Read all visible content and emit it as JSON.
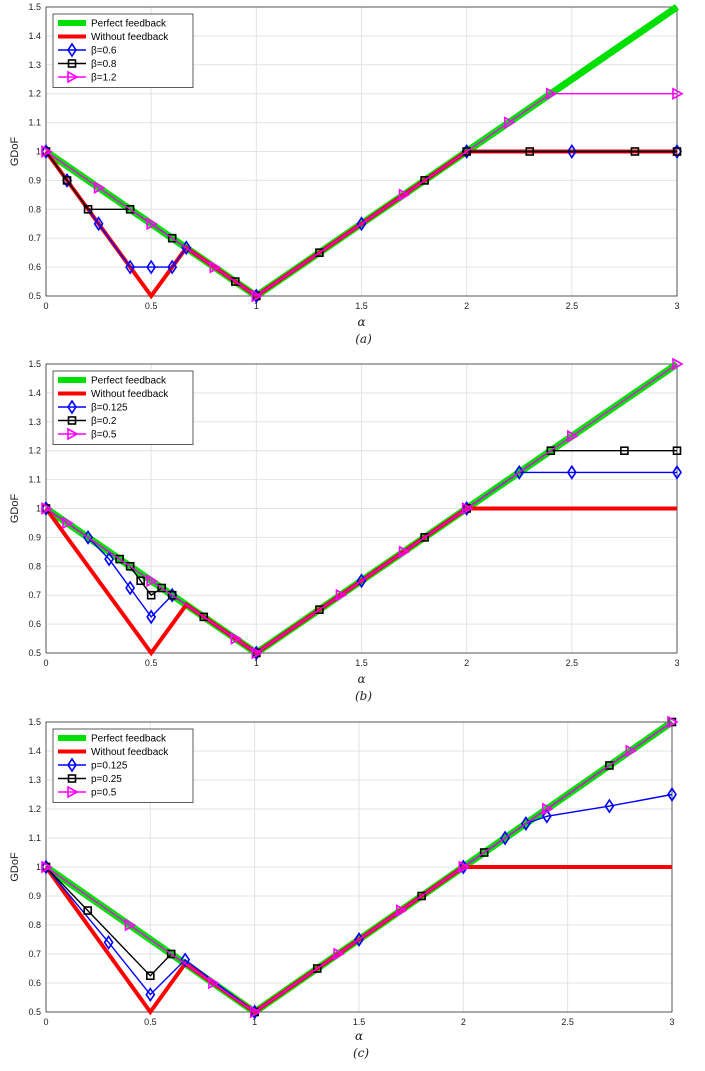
{
  "chart_data": [
    {
      "type": "line",
      "caption": "(a)",
      "xlabel": "α",
      "ylabel": "GDoF",
      "xlim": [
        0,
        3
      ],
      "ylim": [
        0.5,
        1.5
      ],
      "xticks": [
        "0",
        "0.5",
        "1",
        "1.5",
        "2",
        "2.5",
        "3"
      ],
      "yticks": [
        "0.5",
        "0.6",
        "0.7",
        "0.8",
        "0.9",
        "1",
        "1.1",
        "1.2",
        "1.3",
        "1.4",
        "1.5"
      ],
      "grid": true,
      "legend_position": "top-left",
      "series": [
        {
          "name": "Perfect feedback",
          "color": "#00e000",
          "marker": "none",
          "width": "thick",
          "x": [
            0,
            1,
            3
          ],
          "y": [
            1,
            0.5,
            1.5
          ]
        },
        {
          "name": "Without feedback",
          "color": "#ff0000",
          "marker": "none",
          "width": "medium",
          "x": [
            0,
            0.5,
            0.667,
            1,
            2,
            3
          ],
          "y": [
            1,
            0.5,
            0.667,
            0.5,
            1,
            1
          ]
        },
        {
          "name": "β=0.6",
          "color": "#0000ff",
          "marker": "diamond",
          "x": [
            0,
            0.1,
            0.25,
            0.4,
            0.5,
            0.6,
            0.667,
            1,
            1.5,
            2,
            2.5,
            3
          ],
          "y": [
            1,
            0.9,
            0.75,
            0.6,
            0.6,
            0.6,
            0.667,
            0.5,
            0.75,
            1,
            1,
            1
          ]
        },
        {
          "name": "β=0.8",
          "color": "#000000",
          "marker": "square",
          "x": [
            0,
            0.1,
            0.2,
            0.4,
            0.6,
            0.9,
            1,
            1.3,
            1.8,
            2,
            2.3,
            2.8,
            3
          ],
          "y": [
            1,
            0.9,
            0.8,
            0.8,
            0.7,
            0.55,
            0.5,
            0.65,
            0.9,
            1,
            1,
            1,
            1
          ]
        },
        {
          "name": "β=1.2",
          "color": "#ff00ff",
          "marker": "triangle-right",
          "x": [
            0,
            0.25,
            0.5,
            0.8,
            1,
            1.7,
            2.2,
            2.4,
            3
          ],
          "y": [
            1,
            0.875,
            0.75,
            0.6,
            0.5,
            0.85,
            1.1,
            1.2,
            1.2
          ]
        }
      ]
    },
    {
      "type": "line",
      "caption": "(b)",
      "xlabel": "α",
      "ylabel": "GDoF",
      "xlim": [
        0,
        3
      ],
      "ylim": [
        0.5,
        1.5
      ],
      "xticks": [
        "0",
        "0.5",
        "1",
        "1.5",
        "2",
        "2.5",
        "3"
      ],
      "yticks": [
        "0.5",
        "0.6",
        "0.7",
        "0.8",
        "0.9",
        "1",
        "1.1",
        "1.2",
        "1.3",
        "1.4",
        "1.5"
      ],
      "grid": true,
      "legend_position": "top-left",
      "series": [
        {
          "name": "Perfect feedback",
          "color": "#00e000",
          "marker": "none",
          "width": "thick",
          "x": [
            0,
            1,
            3
          ],
          "y": [
            1,
            0.5,
            1.5
          ]
        },
        {
          "name": "Without feedback",
          "color": "#ff0000",
          "marker": "none",
          "width": "medium",
          "x": [
            0,
            0.5,
            0.667,
            1,
            2,
            3
          ],
          "y": [
            1,
            0.5,
            0.667,
            0.5,
            1,
            1
          ]
        },
        {
          "name": "β=0.125",
          "color": "#0000ff",
          "marker": "diamond",
          "x": [
            0,
            0.2,
            0.3,
            0.4,
            0.5,
            0.6,
            1,
            1.5,
            2,
            2.25,
            2.5,
            3
          ],
          "y": [
            1,
            0.9,
            0.825,
            0.725,
            0.625,
            0.7,
            0.5,
            0.75,
            1,
            1.125,
            1.125,
            1.125
          ]
        },
        {
          "name": "β=0.2",
          "color": "#000000",
          "marker": "square",
          "x": [
            0,
            0.35,
            0.4,
            0.45,
            0.5,
            0.55,
            0.6,
            0.75,
            1,
            1.3,
            1.8,
            2,
            2.4,
            2.75,
            3
          ],
          "y": [
            1,
            0.825,
            0.8,
            0.75,
            0.7,
            0.725,
            0.7,
            0.625,
            0.5,
            0.65,
            0.9,
            1,
            1.2,
            1.2,
            1.2
          ]
        },
        {
          "name": "β=0.5",
          "color": "#ff00ff",
          "marker": "triangle-right",
          "x": [
            0,
            0.1,
            0.5,
            0.9,
            1,
            1.4,
            1.7,
            2,
            2.5,
            3
          ],
          "y": [
            1,
            0.95,
            0.75,
            0.55,
            0.5,
            0.7,
            0.85,
            1,
            1.25,
            1.5
          ]
        }
      ]
    },
    {
      "type": "line",
      "caption": "(c)",
      "xlabel": "α",
      "ylabel": "GDoF",
      "xlim": [
        0,
        3
      ],
      "ylim": [
        0.5,
        1.5
      ],
      "xticks": [
        "0",
        "0.5",
        "1",
        "1.5",
        "2",
        "2.5",
        "3"
      ],
      "yticks": [
        "0.5",
        "0.6",
        "0.7",
        "0.8",
        "0.9",
        "1",
        "1.1",
        "1.2",
        "1.3",
        "1.4",
        "1.5"
      ],
      "grid": true,
      "legend_position": "top-left",
      "series": [
        {
          "name": "Perfect feedback",
          "color": "#00e000",
          "marker": "none",
          "width": "thick",
          "x": [
            0,
            1,
            3
          ],
          "y": [
            1,
            0.5,
            1.5
          ]
        },
        {
          "name": "Without feedback",
          "color": "#ff0000",
          "marker": "none",
          "width": "medium",
          "x": [
            0,
            0.5,
            0.667,
            1,
            2,
            3
          ],
          "y": [
            1,
            0.5,
            0.667,
            0.5,
            1,
            1
          ]
        },
        {
          "name": "p=0.125",
          "color": "#0000ff",
          "marker": "diamond",
          "x": [
            0,
            0.3,
            0.5,
            0.667,
            1,
            1.5,
            2,
            2.2,
            2.3,
            2.4,
            2.7,
            3
          ],
          "y": [
            1,
            0.74,
            0.56,
            0.68,
            0.5,
            0.75,
            1,
            1.1,
            1.15,
            1.175,
            1.21,
            1.25
          ]
        },
        {
          "name": "p=0.25",
          "color": "#000000",
          "marker": "square",
          "x": [
            0,
            0.2,
            0.5,
            0.6,
            1,
            1.3,
            1.8,
            2.1,
            2.7,
            3
          ],
          "y": [
            1,
            0.85,
            0.625,
            0.7,
            0.5,
            0.65,
            0.9,
            1.05,
            1.35,
            1.5
          ]
        },
        {
          "name": "p=0.5",
          "color": "#ff00ff",
          "marker": "triangle-right",
          "x": [
            0,
            0.4,
            0.8,
            1,
            1.4,
            1.7,
            2,
            2.4,
            2.8,
            3
          ],
          "y": [
            1,
            0.8,
            0.6,
            0.5,
            0.7,
            0.85,
            1,
            1.2,
            1.4,
            1.5
          ]
        }
      ]
    }
  ]
}
